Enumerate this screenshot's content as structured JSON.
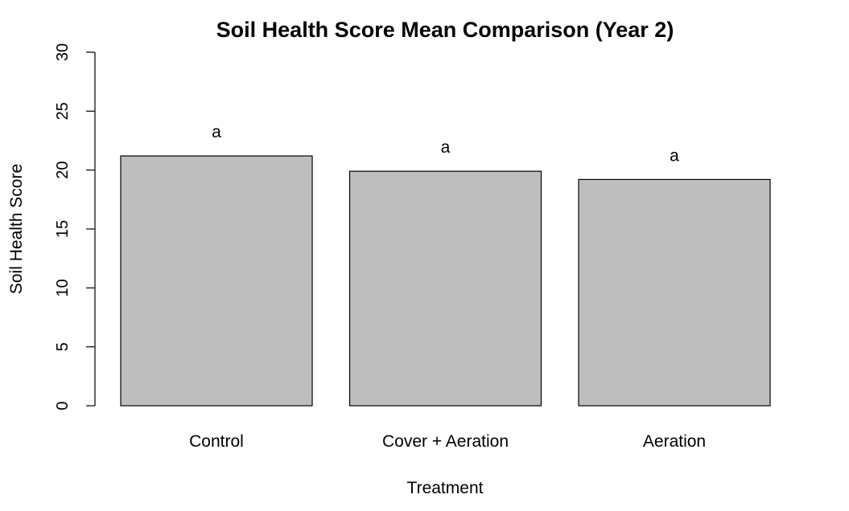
{
  "chart_data": {
    "type": "bar",
    "title": "Soil Health Score Mean Comparison (Year 2)",
    "xlabel": "Treatment",
    "ylabel": "Soil Health Score",
    "ylim": [
      0,
      30
    ],
    "yticks": [
      0,
      5,
      10,
      15,
      20,
      25,
      30
    ],
    "categories": [
      "Control",
      "Cover + Aeration",
      "Aeration"
    ],
    "values": [
      21.2,
      19.9,
      19.2
    ],
    "significance_letters": [
      "a",
      "a",
      "a"
    ],
    "bar_color": "#bebebe",
    "grid": false,
    "legend": "none"
  }
}
